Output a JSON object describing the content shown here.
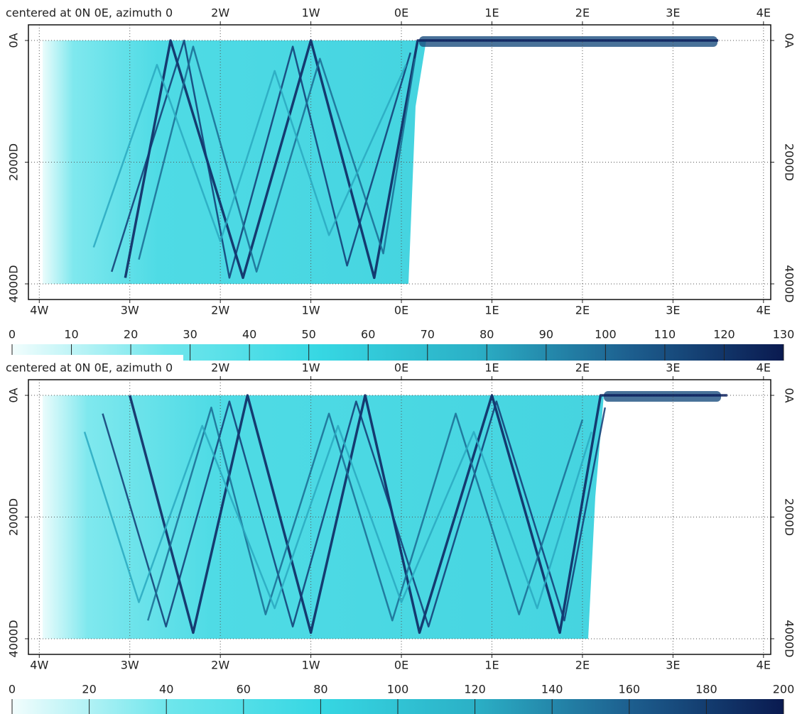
{
  "chart_data": [
    {
      "type": "line",
      "title": "centered at 0N 0E, azimuth 0",
      "xlim": [
        -4.12,
        4.08
      ],
      "ylim": [
        -257,
        4257
      ],
      "y_inverted": true,
      "grid": true,
      "xticks": [
        {
          "value": -4,
          "label": "4W"
        },
        {
          "value": -3,
          "label": "3W"
        },
        {
          "value": -2,
          "label": "2W"
        },
        {
          "value": -1,
          "label": "1W"
        },
        {
          "value": 0,
          "label": "0E"
        },
        {
          "value": 1,
          "label": "1E"
        },
        {
          "value": 2,
          "label": "2E"
        },
        {
          "value": 3,
          "label": "3E"
        },
        {
          "value": 4,
          "label": "4E"
        }
      ],
      "top_xticks": [
        {
          "value": -2,
          "label": "2W"
        },
        {
          "value": -1,
          "label": "1W"
        },
        {
          "value": 0,
          "label": "0E"
        },
        {
          "value": 1,
          "label": "1E"
        },
        {
          "value": 2,
          "label": "2E"
        },
        {
          "value": 3,
          "label": "3E"
        },
        {
          "value": 4,
          "label": "4E"
        }
      ],
      "yticks": [
        {
          "value": 0,
          "label": "0A"
        },
        {
          "value": 2000,
          "label": "2000D"
        },
        {
          "value": 4000,
          "label": "4000D"
        }
      ],
      "series": [
        {
          "color": "#0b1f5c",
          "x": [
            -3.05,
            -2.55,
            -1.75,
            -1.0,
            -0.3,
            0.18,
            3.5
          ],
          "values": [
            3900,
            0,
            3900,
            0,
            3900,
            0,
            0
          ]
        },
        {
          "color": "#123a73",
          "x": [
            -3.2,
            -2.4,
            -1.9,
            -1.2,
            -0.6,
            0.1
          ],
          "values": [
            3800,
            0,
            3900,
            100,
            3700,
            200
          ]
        },
        {
          "color": "#1a6b93",
          "x": [
            -2.9,
            -2.3,
            -1.6,
            -0.9,
            -0.2,
            0.15
          ],
          "values": [
            3600,
            100,
            3800,
            300,
            3500,
            300
          ]
        },
        {
          "color": "#2aa8bf",
          "x": [
            -3.4,
            -2.7,
            -2.0,
            -1.4,
            -0.8,
            0.05
          ],
          "values": [
            3400,
            400,
            3300,
            500,
            3200,
            400
          ]
        }
      ],
      "colorbar": {
        "lim": [
          0,
          130
        ],
        "ticks": [
          0,
          10,
          20,
          30,
          40,
          50,
          60,
          70,
          80,
          90,
          100,
          110,
          120,
          130
        ],
        "colors": [
          "#f2fdfd",
          "#6fe6ec",
          "#36d7e3",
          "#2bb0c6",
          "#1d5f8f",
          "#0a1a50"
        ]
      }
    },
    {
      "type": "line",
      "title": "centered at 0N 0E, azimuth 0",
      "xlim": [
        -4.12,
        4.08
      ],
      "ylim": [
        -257,
        4257
      ],
      "y_inverted": true,
      "grid": true,
      "xticks": [
        {
          "value": -4,
          "label": "4W"
        },
        {
          "value": -3,
          "label": "3W"
        },
        {
          "value": -2,
          "label": "2W"
        },
        {
          "value": -1,
          "label": "1W"
        },
        {
          "value": 0,
          "label": "0E"
        },
        {
          "value": 1,
          "label": "1E"
        },
        {
          "value": 2,
          "label": "2E"
        },
        {
          "value": 3,
          "label": "3E"
        },
        {
          "value": 4,
          "label": "4E"
        }
      ],
      "top_xticks": [
        {
          "value": -2,
          "label": "2W"
        },
        {
          "value": -1,
          "label": "1W"
        },
        {
          "value": 0,
          "label": "0E"
        },
        {
          "value": 1,
          "label": "1E"
        },
        {
          "value": 2,
          "label": "2E"
        },
        {
          "value": 3,
          "label": "3E"
        },
        {
          "value": 4,
          "label": "4E"
        }
      ],
      "yticks": [
        {
          "value": 0,
          "label": "0A"
        },
        {
          "value": 2000,
          "label": "2000D"
        },
        {
          "value": 4000,
          "label": "4000D"
        }
      ],
      "series": [
        {
          "color": "#0b1f5c",
          "x": [
            -3.0,
            -2.3,
            -1.7,
            -1.0,
            -0.4,
            0.2,
            1.0,
            1.75,
            2.2,
            3.6
          ],
          "values": [
            0,
            3900,
            0,
            3900,
            0,
            3900,
            0,
            3900,
            0,
            0
          ]
        },
        {
          "color": "#123a73",
          "x": [
            -3.3,
            -2.6,
            -1.9,
            -1.2,
            -0.5,
            0.3,
            1.05,
            1.8,
            2.25
          ],
          "values": [
            300,
            3800,
            100,
            3800,
            100,
            3800,
            100,
            3700,
            200
          ]
        },
        {
          "color": "#1a6b93",
          "x": [
            -2.8,
            -2.1,
            -1.5,
            -0.8,
            -0.1,
            0.6,
            1.3,
            2.0
          ],
          "values": [
            3700,
            200,
            3600,
            300,
            3700,
            300,
            3600,
            400
          ]
        },
        {
          "color": "#2aa8bf",
          "x": [
            -3.5,
            -2.9,
            -2.2,
            -1.4,
            -0.7,
            0.0,
            0.8,
            1.5,
            2.1
          ],
          "values": [
            600,
            3400,
            500,
            3500,
            500,
            3400,
            600,
            3500,
            600
          ]
        }
      ],
      "colorbar": {
        "lim": [
          0,
          200
        ],
        "ticks": [
          0,
          20,
          40,
          60,
          80,
          100,
          120,
          140,
          160,
          180,
          200
        ],
        "colors": [
          "#f2fdfd",
          "#6fe6ec",
          "#36d7e3",
          "#2bb0c6",
          "#1d5f8f",
          "#0a1a50"
        ]
      }
    }
  ]
}
